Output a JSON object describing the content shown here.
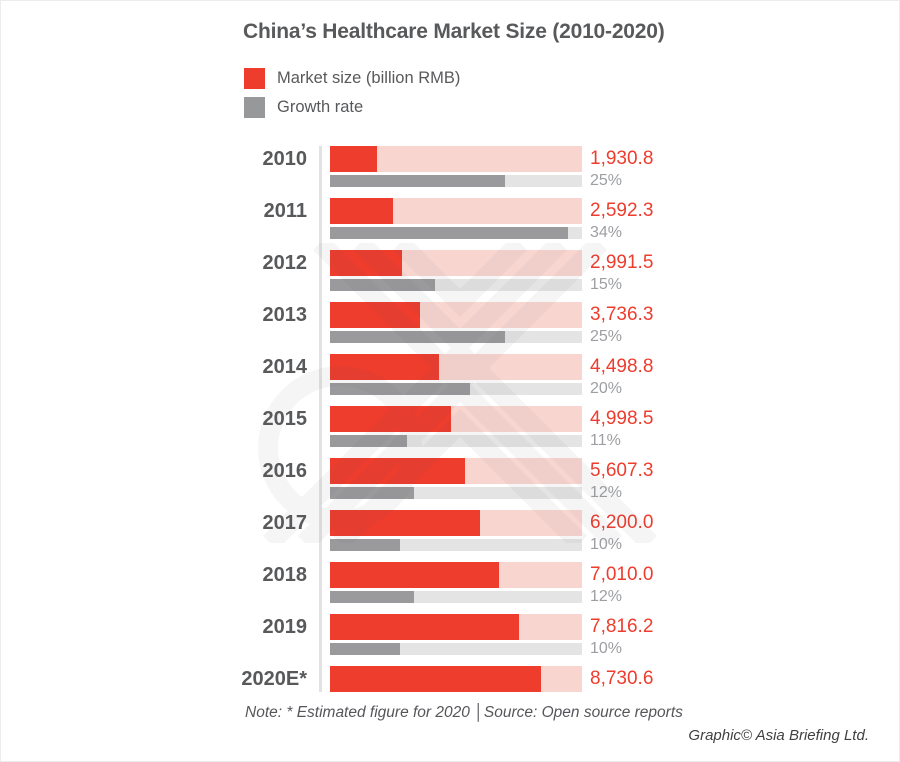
{
  "title": "China’s Healthcare Market Size (2010-2020)",
  "legend": [
    {
      "label": "Market size (billion RMB)",
      "color": "#EE3C2D"
    },
    {
      "label": "Growth rate",
      "color": "#97989A"
    }
  ],
  "chart_data": {
    "type": "bar",
    "orientation": "horizontal",
    "title": "China’s Healthcare Market Size (2010-2020)",
    "categories": [
      "2010",
      "2011",
      "2012",
      "2013",
      "2014",
      "2015",
      "2016",
      "2017",
      "2018",
      "2019",
      "2020E*"
    ],
    "series": [
      {
        "name": "Market size (billion RMB)",
        "color": "#EE3C2D",
        "track_color": "#F9D5D0",
        "axis_max": 10435,
        "values": [
          1930.8,
          2592.3,
          2991.5,
          3736.3,
          4498.8,
          4998.5,
          5607.3,
          6200.0,
          7010.0,
          7816.2,
          8730.6
        ],
        "labels": [
          "1,930.8",
          "2,592.3",
          "2,991.5",
          "3,736.3",
          "4,498.8",
          "4,998.5",
          "5,607.3",
          "6,200.0",
          "7,010.0",
          "7,816.2",
          "8,730.6"
        ]
      },
      {
        "name": "Growth rate",
        "color": "#9A9A9C",
        "track_color": "#E4E4E4",
        "axis_max": 36,
        "unit": "%",
        "values": [
          25,
          34,
          15,
          25,
          20,
          11,
          12,
          10,
          12,
          10,
          null
        ],
        "labels": [
          "25%",
          "34%",
          "15%",
          "25%",
          "20%",
          "11%",
          "12%",
          "10%",
          "12%",
          "10%",
          ""
        ]
      }
    ],
    "legend_position": "top-left",
    "grid": false
  },
  "note": "Note: * Estimated figure for 2020 │Source: Open source reports",
  "credit": "Graphic© Asia Briefing Ltd.",
  "colors": {
    "market_size_bar": "#EE3C2D",
    "market_size_track": "#F9D5D0",
    "growth_bar": "#9A9A9C",
    "growth_track": "#E4E4E4",
    "text_dark": "#58595B",
    "text_pct": "#9C9EA1",
    "divider_line": "#E2E2E2"
  }
}
